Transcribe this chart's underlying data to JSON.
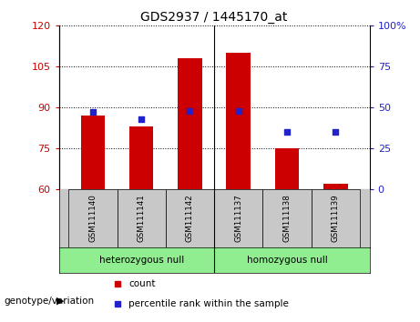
{
  "title": "GDS2937 / 1445170_at",
  "samples": [
    "GSM111140",
    "GSM111141",
    "GSM111142",
    "GSM111137",
    "GSM111138",
    "GSM111139"
  ],
  "bar_tops": [
    87,
    83,
    108,
    110,
    75,
    62
  ],
  "bar_bottom": 60,
  "percentile_values": [
    47,
    43,
    48,
    48,
    35,
    35
  ],
  "groups": [
    {
      "label": "heterozygous null",
      "start": 0,
      "end": 3
    },
    {
      "label": "homozygous null",
      "start": 3,
      "end": 6
    }
  ],
  "group_color": "#90EE90",
  "left_ylim": [
    60,
    120
  ],
  "left_yticks": [
    60,
    75,
    90,
    105,
    120
  ],
  "right_ylim": [
    0,
    100
  ],
  "right_yticks": [
    0,
    25,
    50,
    75,
    100
  ],
  "right_yticklabels": [
    "0",
    "25",
    "50",
    "75",
    "100%"
  ],
  "bar_color": "#CC0000",
  "marker_color": "#2222CC",
  "bar_width": 0.5,
  "left_tick_color": "#CC0000",
  "right_tick_color": "#2222CC",
  "legend_count_label": "count",
  "legend_percentile_label": "percentile rank within the sample",
  "xlabel_genotype": "genotype/variation",
  "label_bg": "#C8C8C8"
}
